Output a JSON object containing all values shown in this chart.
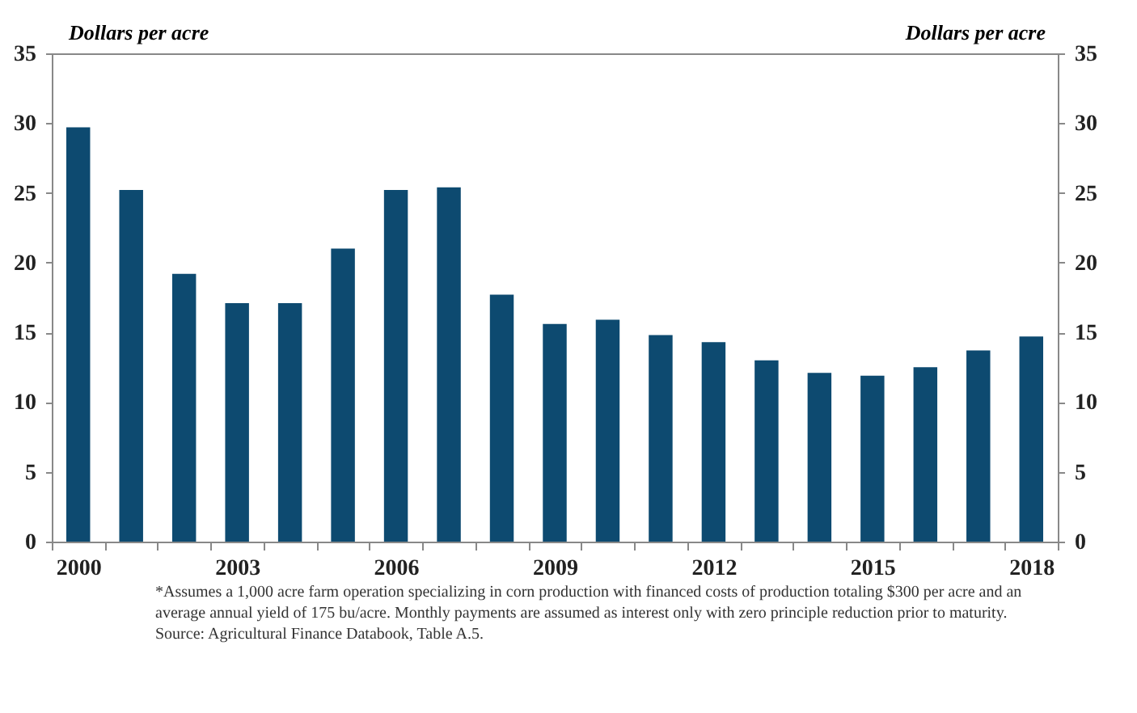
{
  "chart_data": {
    "type": "bar",
    "categories": [
      "2000",
      null,
      null,
      "2003",
      null,
      null,
      "2006",
      null,
      null,
      "2009",
      null,
      null,
      "2012",
      null,
      null,
      "2015",
      null,
      null,
      "2018"
    ],
    "values": [
      29.7,
      25.2,
      19.2,
      17.1,
      17.1,
      21.0,
      25.2,
      25.4,
      17.7,
      15.6,
      15.9,
      14.8,
      14.3,
      13.0,
      12.1,
      11.9,
      12.5,
      13.7,
      14.7
    ],
    "color": "#0d4a70",
    "ylabel": "Dollars per acre",
    "y2label": "Dollars per acre",
    "ylim": [
      0,
      35
    ],
    "yticks": [
      0,
      5,
      10,
      15,
      20,
      25,
      30,
      35
    ],
    "y2lim": [
      0,
      35
    ],
    "y2ticks": [
      0,
      5,
      10,
      15,
      20,
      25,
      30,
      35
    ],
    "grid": false,
    "annotations": [
      "*Assumes a 1,000 acre farm operation specializing in corn production with financed costs of production totaling $300 per acre and an average annual yield of 175 bu/acre. Monthly payments are assumed as interest only with zero principle reduction prior to maturity.",
      "Source: Agricultural Finance Databook, Table A.5."
    ]
  }
}
